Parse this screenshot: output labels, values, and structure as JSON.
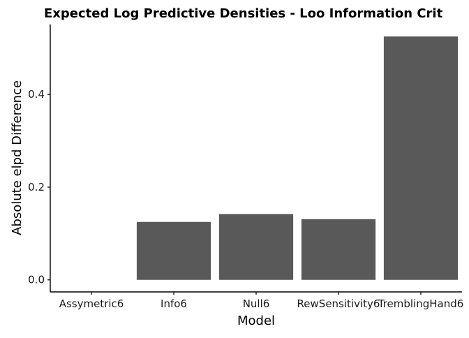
{
  "chart_data": {
    "type": "bar",
    "title": "Expected Log Predictive Densities - Loo Information Crit",
    "xlabel": "Model",
    "ylabel": "Absolute elpd Difference",
    "categories": [
      "Assymetric6",
      "Info6",
      "Null6",
      "RewSensitivity6",
      "TremblingHand6"
    ],
    "values": [
      0.0,
      0.125,
      0.142,
      0.131,
      0.525
    ],
    "yticks": [
      "0.0",
      "0.2",
      "0.4"
    ],
    "ytick_values": [
      0.0,
      0.2,
      0.4
    ],
    "ylim": [
      -0.026,
      0.551
    ],
    "grid": false,
    "legend": "none",
    "colors": {
      "bar": "#595959",
      "axis": "#000000",
      "text": "#000000",
      "tick_label": "#1a1a1a"
    }
  }
}
